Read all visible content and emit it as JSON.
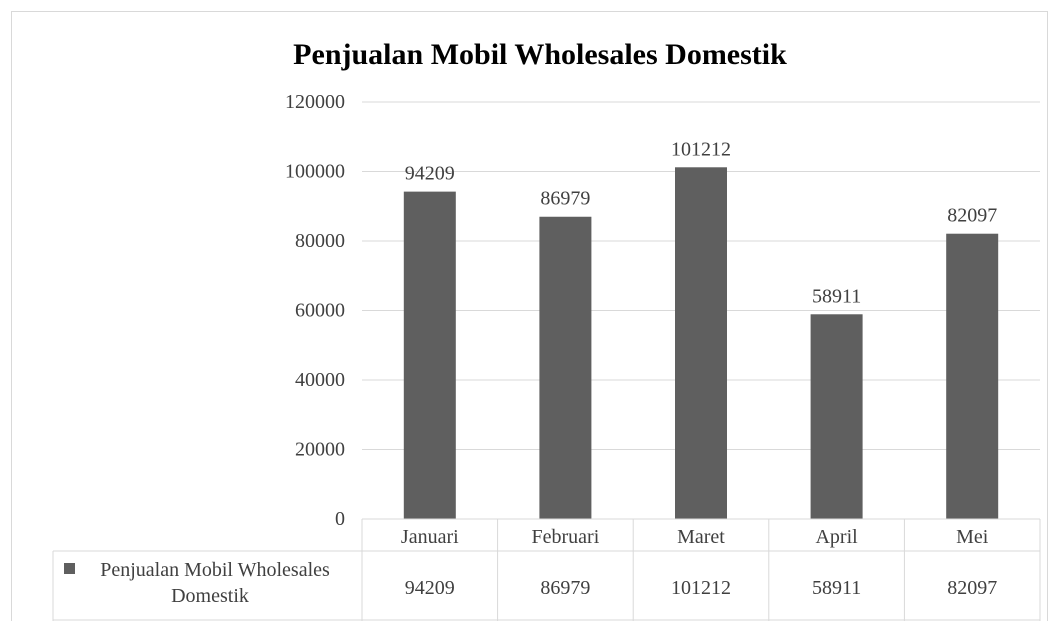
{
  "chart_data": {
    "type": "bar",
    "title": "Penjualan Mobil Wholesales Domestik",
    "categories": [
      "Januari",
      "Februari",
      "Maret",
      "April",
      "Mei"
    ],
    "series": [
      {
        "name": "Penjualan Mobil Wholesales Domestik",
        "values": [
          94209,
          86979,
          101212,
          58911,
          82097
        ],
        "color": "#5f5f5f"
      }
    ],
    "ylim": [
      0,
      120000
    ],
    "yticks": [
      0,
      20000,
      40000,
      60000,
      80000,
      100000,
      120000
    ],
    "xlabel": "",
    "ylabel": "",
    "grid": true,
    "data_labels": true,
    "data_table": true,
    "gridline_color": "#d9d9d9",
    "text_color": "#404040"
  }
}
